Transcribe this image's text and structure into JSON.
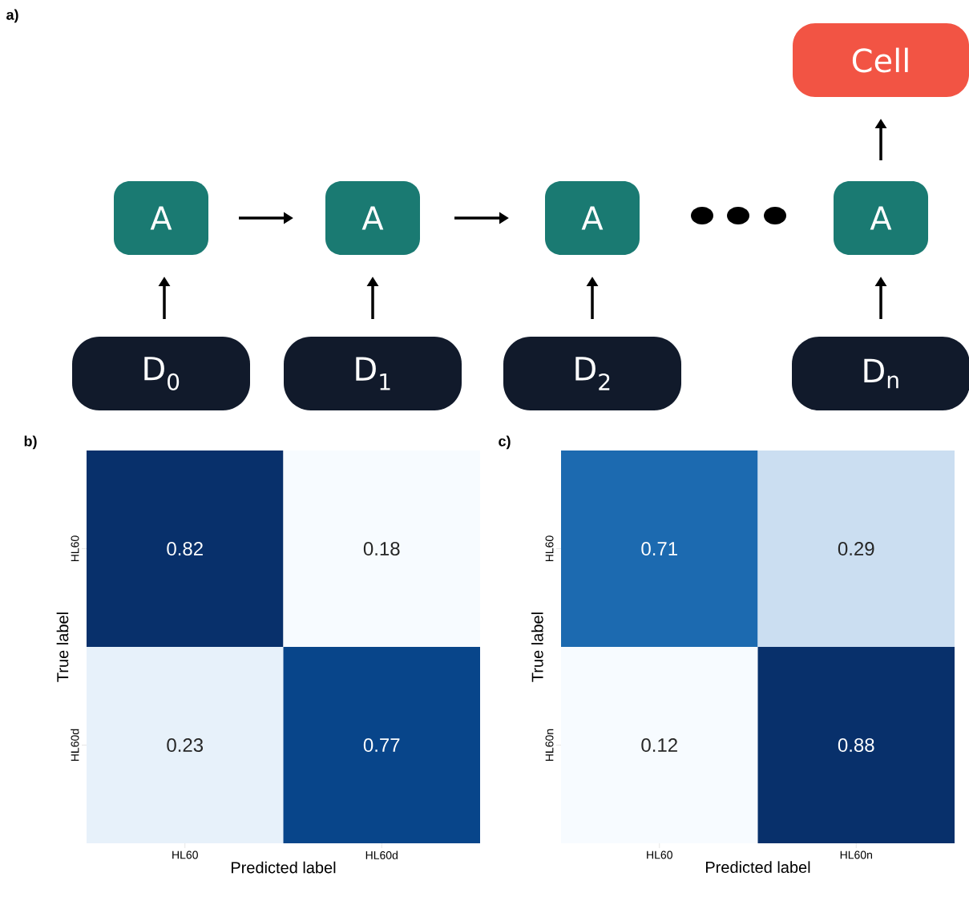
{
  "chart_data": [
    {
      "type": "other",
      "title": "a)",
      "annotations": [
        "Cell",
        "A",
        "A",
        "A",
        "A",
        "D$_{0}$",
        "D$_{1}$",
        "D$_{2}$",
        "D$_{n}$"
      ]
    },
    {
      "type": "heatmap",
      "title": "b)",
      "xlabel": "Predicted label",
      "ylabel": "True label",
      "categories": [
        "HL60",
        "HL60d"
      ],
      "y_categories": [
        "HL60",
        "HL60d"
      ],
      "cells": [
        [
          0.82,
          0.18
        ],
        [
          0.23,
          0.77
        ]
      ],
      "data_labels": true
    },
    {
      "type": "heatmap",
      "title": "c)",
      "xlabel": "Predicted label",
      "ylabel": "True label",
      "categories": [
        "HL60",
        "HL60n"
      ],
      "y_categories": [
        "HL60",
        "HL60n"
      ],
      "cells": [
        [
          0.71,
          0.29
        ],
        [
          0.12,
          0.88
        ]
      ],
      "data_labels": true
    }
  ]
}
